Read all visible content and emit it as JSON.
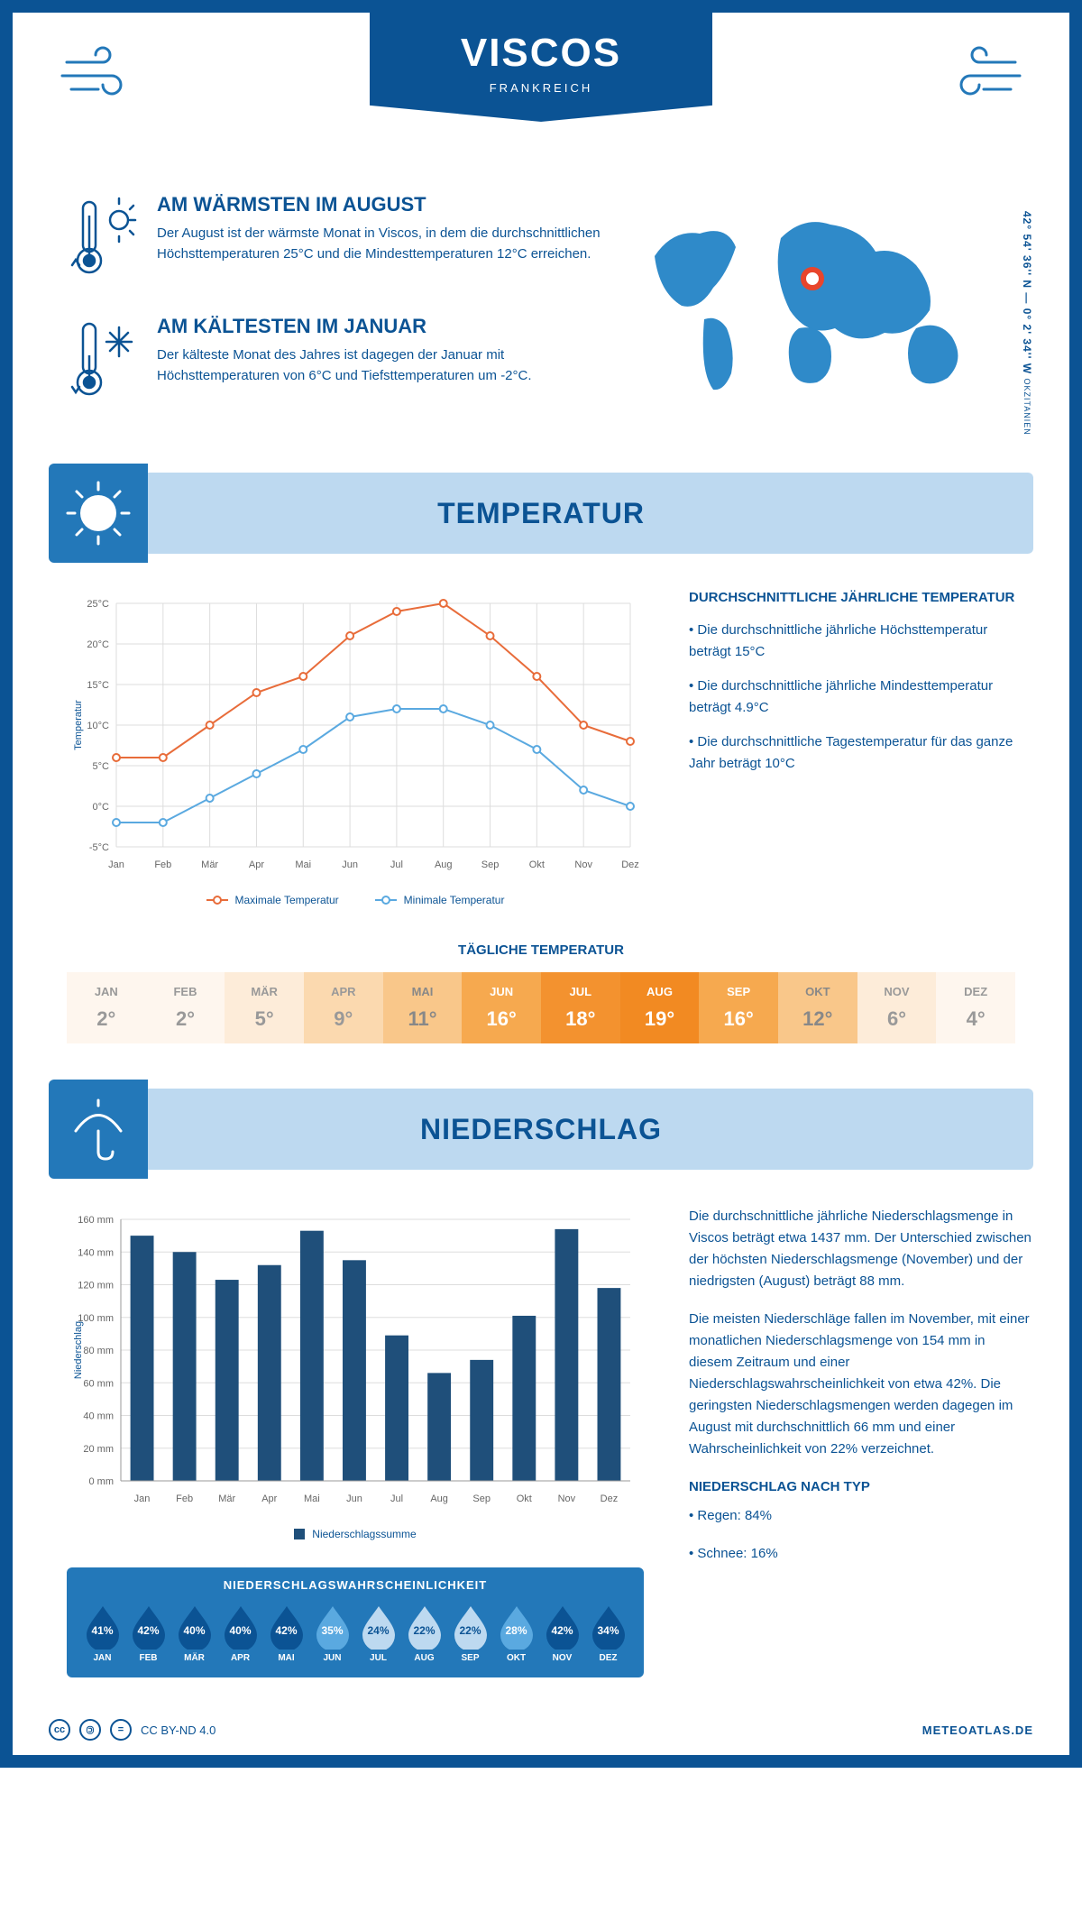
{
  "header": {
    "title": "VISCOS",
    "country": "FRANKREICH",
    "coords": "42° 54' 36'' N — 0° 2' 34'' W",
    "region": "OKZITANIEN"
  },
  "facts": {
    "warm": {
      "title": "AM WÄRMSTEN IM AUGUST",
      "text": "Der August ist der wärmste Monat in Viscos, in dem die durchschnittlichen Höchsttemperaturen 25°C und die Mindesttemperaturen 12°C erreichen."
    },
    "cold": {
      "title": "AM KÄLTESTEN IM JANUAR",
      "text": "Der kälteste Monat des Jahres ist dagegen der Januar mit Höchsttemperaturen von 6°C und Tiefsttemperaturen um -2°C."
    }
  },
  "temperature": {
    "section_title": "TEMPERATUR",
    "chart": {
      "months": [
        "Jan",
        "Feb",
        "Mär",
        "Apr",
        "Mai",
        "Jun",
        "Jul",
        "Aug",
        "Sep",
        "Okt",
        "Nov",
        "Dez"
      ],
      "max_series": [
        6,
        6,
        10,
        14,
        16,
        21,
        24,
        25,
        21,
        16,
        10,
        8
      ],
      "min_series": [
        -2,
        -2,
        1,
        4,
        7,
        11,
        12,
        12,
        10,
        7,
        2,
        0
      ],
      "max_color": "#e86c3a",
      "min_color": "#5aa9e0",
      "ylim": [
        -5,
        25
      ],
      "ytick_step": 5,
      "y_label": "Temperatur",
      "grid_color": "#dddddd",
      "line_width": 2,
      "marker_size": 4,
      "legend_max": "Maximale Temperatur",
      "legend_min": "Minimale Temperatur"
    },
    "text": {
      "heading": "DURCHSCHNITTLICHE JÄHRLICHE TEMPERATUR",
      "p1": "• Die durchschnittliche jährliche Höchsttemperatur beträgt 15°C",
      "p2": "• Die durchschnittliche jährliche Mindesttemperatur beträgt 4.9°C",
      "p3": "• Die durchschnittliche Tagestemperatur für das ganze Jahr beträgt 10°C"
    },
    "daily": {
      "title": "TÄGLICHE TEMPERATUR",
      "months": [
        "JAN",
        "FEB",
        "MÄR",
        "APR",
        "MAI",
        "JUN",
        "JUL",
        "AUG",
        "SEP",
        "OKT",
        "NOV",
        "DEZ"
      ],
      "values": [
        "2°",
        "2°",
        "5°",
        "9°",
        "11°",
        "16°",
        "18°",
        "19°",
        "16°",
        "12°",
        "6°",
        "4°"
      ],
      "bg_colors": [
        "#fef6ee",
        "#fef6ee",
        "#fdecd9",
        "#fbd9af",
        "#f9c78a",
        "#f6a94f",
        "#f3922f",
        "#f28a22",
        "#f6a94f",
        "#f9c78a",
        "#fdecd9",
        "#fef6ee"
      ],
      "fg_colors": [
        "#999999",
        "#999999",
        "#999999",
        "#999999",
        "#888888",
        "#ffffff",
        "#ffffff",
        "#ffffff",
        "#ffffff",
        "#888888",
        "#999999",
        "#999999"
      ]
    }
  },
  "precipitation": {
    "section_title": "NIEDERSCHLAG",
    "chart": {
      "months": [
        "Jan",
        "Feb",
        "Mär",
        "Apr",
        "Mai",
        "Jun",
        "Jul",
        "Aug",
        "Sep",
        "Okt",
        "Nov",
        "Dez"
      ],
      "values": [
        150,
        140,
        123,
        132,
        153,
        135,
        89,
        66,
        74,
        101,
        154,
        118
      ],
      "bar_color": "#1f4f7a",
      "ylim": [
        0,
        160
      ],
      "ytick_step": 20,
      "y_label": "Niederschlag",
      "grid_color": "#dddddd",
      "bar_width": 0.55,
      "legend_label": "Niederschlagssumme"
    },
    "text": {
      "p1": "Die durchschnittliche jährliche Niederschlagsmenge in Viscos beträgt etwa 1437 mm. Der Unterschied zwischen der höchsten Niederschlagsmenge (November) und der niedrigsten (August) beträgt 88 mm.",
      "p2": "Die meisten Niederschläge fallen im November, mit einer monatlichen Niederschlagsmenge von 154 mm in diesem Zeitraum und einer Niederschlagswahrscheinlichkeit von etwa 42%. Die geringsten Niederschlagsmengen werden dagegen im August mit durchschnittlich 66 mm und einer Wahrscheinlichkeit von 22% verzeichnet.",
      "type_heading": "NIEDERSCHLAG NACH TYP",
      "type_rain": "• Regen: 84%",
      "type_snow": "• Schnee: 16%"
    },
    "probability": {
      "title": "NIEDERSCHLAGSWAHRSCHEINLICHKEIT",
      "months": [
        "JAN",
        "FEB",
        "MÄR",
        "APR",
        "MAI",
        "JUN",
        "JUL",
        "AUG",
        "SEP",
        "OKT",
        "NOV",
        "DEZ"
      ],
      "values": [
        "41%",
        "42%",
        "40%",
        "40%",
        "42%",
        "35%",
        "24%",
        "22%",
        "22%",
        "28%",
        "42%",
        "34%"
      ],
      "fills": [
        "#0b5394",
        "#0b5394",
        "#0b5394",
        "#0b5394",
        "#0b5394",
        "#5aa9e0",
        "#bdd9f0",
        "#bdd9f0",
        "#bdd9f0",
        "#5aa9e0",
        "#0b5394",
        "#0b5394"
      ],
      "text_colors": [
        "#ffffff",
        "#ffffff",
        "#ffffff",
        "#ffffff",
        "#ffffff",
        "#ffffff",
        "#0b5394",
        "#0b5394",
        "#0b5394",
        "#ffffff",
        "#ffffff",
        "#ffffff"
      ]
    }
  },
  "footer": {
    "license": "CC BY-ND 4.0",
    "site": "METEOATLAS.DE"
  },
  "colors": {
    "primary": "#0b5394",
    "secondary": "#2378b9",
    "light": "#bdd9f0"
  }
}
